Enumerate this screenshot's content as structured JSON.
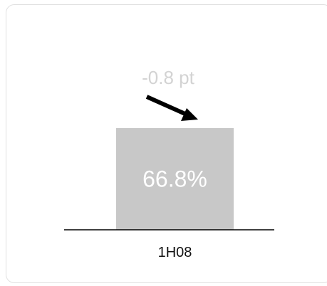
{
  "chart_data": {
    "type": "bar",
    "categories": [
      "1H08"
    ],
    "values": [
      66.8
    ],
    "value_labels": [
      "66.8%"
    ],
    "change_label": "-0.8 pt",
    "change_direction": "down",
    "ylim": [
      0,
      100
    ],
    "grid": false,
    "title": "",
    "xlabel": "",
    "ylabel": "",
    "colors": {
      "bar": "#c8c8c8",
      "bar_label": "#ffffff",
      "change_label": "#d3d3d3",
      "arrow": "#000000",
      "axis": "#000000"
    }
  }
}
